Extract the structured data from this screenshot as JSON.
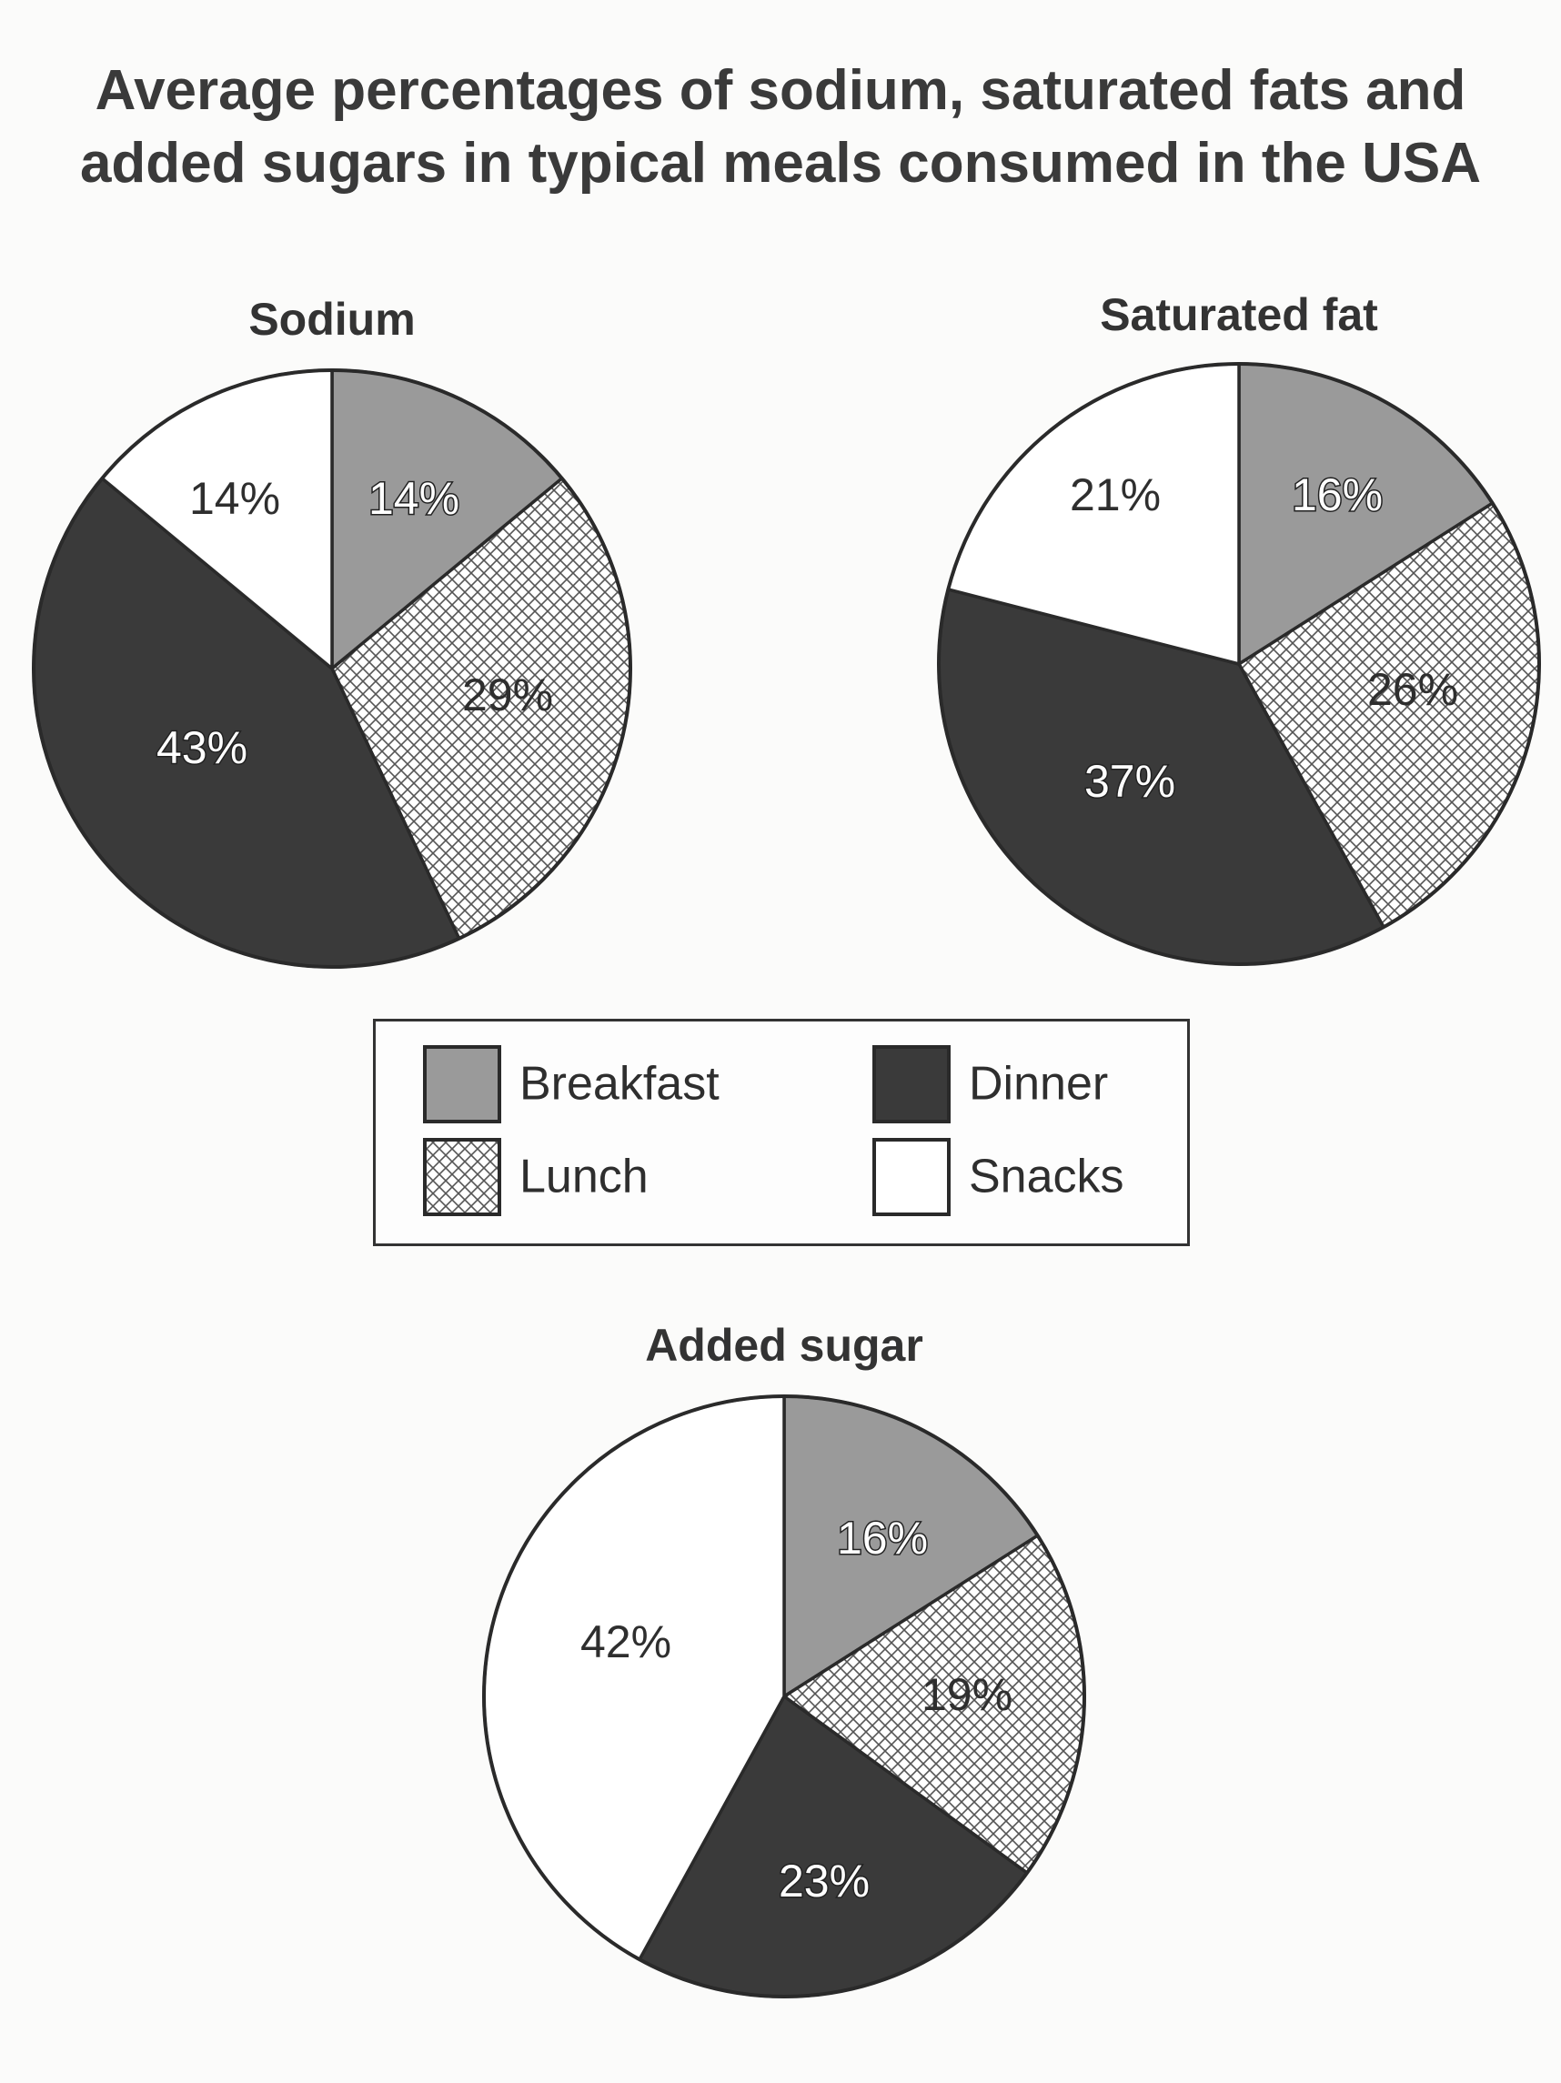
{
  "title_line1": "Average percentages of sodium, saturated fats and",
  "title_line2": "added sugars in typical meals consumed in the USA",
  "colors": {
    "Breakfast": "#9a9a9a",
    "Dinner": "#3a3a3a",
    "Lunch": "crosshatch",
    "Snacks": "#ffffff"
  },
  "chart_data": [
    {
      "type": "pie",
      "title": "Sodium",
      "categories": [
        "Breakfast",
        "Lunch",
        "Dinner",
        "Snacks"
      ],
      "values": [
        14,
        29,
        43,
        14
      ],
      "labels": [
        "14%",
        "29%",
        "43%",
        "14%"
      ]
    },
    {
      "type": "pie",
      "title": "Saturated fat",
      "categories": [
        "Breakfast",
        "Lunch",
        "Dinner",
        "Snacks"
      ],
      "values": [
        16,
        26,
        37,
        21
      ],
      "labels": [
        "16%",
        "26%",
        "37%",
        "21%"
      ]
    },
    {
      "type": "pie",
      "title": "Added sugar",
      "categories": [
        "Breakfast",
        "Lunch",
        "Dinner",
        "Snacks"
      ],
      "values": [
        16,
        19,
        23,
        42
      ],
      "labels": [
        "16%",
        "19%",
        "23%",
        "42%"
      ]
    }
  ],
  "legend": {
    "placement": "center",
    "items": [
      "Breakfast",
      "Dinner",
      "Lunch",
      "Snacks"
    ]
  }
}
